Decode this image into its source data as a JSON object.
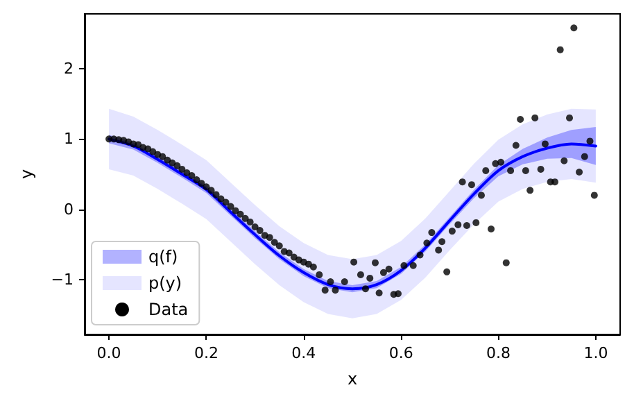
{
  "chart_data": {
    "type": "scatter",
    "xlabel": "x",
    "ylabel": "y",
    "xlim": [
      -0.05,
      1.05
    ],
    "ylim": [
      -1.78,
      2.78
    ],
    "xticks": [
      {
        "value": 0,
        "label": "0.0"
      },
      {
        "value": 0.2,
        "label": "0.2"
      },
      {
        "value": 0.4,
        "label": "0.4"
      },
      {
        "value": 0.6,
        "label": "0.6"
      },
      {
        "value": 0.8,
        "label": "0.8"
      },
      {
        "value": 1,
        "label": "1.0"
      }
    ],
    "yticks": [
      -1,
      0,
      1,
      2
    ],
    "grid": false,
    "legend": "bottom left",
    "series": [
      {
        "name": "q(f)",
        "type": "line",
        "color": "#0000ff",
        "marker": "none",
        "line_style": "solid",
        "x": [
          0,
          0.05,
          0.1,
          0.15,
          0.2,
          0.25,
          0.3,
          0.35,
          0.4,
          0.45,
          0.5,
          0.55,
          0.6,
          0.65,
          0.7,
          0.75,
          0.8,
          0.85,
          0.9,
          0.95,
          1
        ],
        "values": [
          1.0,
          0.9,
          0.71,
          0.5,
          0.28,
          -0.04,
          -0.36,
          -0.66,
          -0.9,
          -1.07,
          -1.13,
          -1.07,
          -0.87,
          -0.55,
          -0.16,
          0.22,
          0.55,
          0.75,
          0.87,
          0.93,
          0.9
        ],
        "lower": [
          0.94,
          0.85,
          0.66,
          0.45,
          0.23,
          -0.09,
          -0.41,
          -0.71,
          -0.95,
          -1.12,
          -1.18,
          -1.12,
          -0.92,
          -0.6,
          -0.21,
          0.16,
          0.47,
          0.64,
          0.72,
          0.73,
          0.63
        ],
        "upper": [
          1.06,
          0.95,
          0.76,
          0.55,
          0.33,
          0.01,
          -0.31,
          -0.61,
          -0.85,
          -1.02,
          -1.08,
          -1.02,
          -0.82,
          -0.5,
          -0.11,
          0.28,
          0.63,
          0.86,
          1.02,
          1.13,
          1.17
        ]
      },
      {
        "name": "p(y)",
        "type": "line",
        "color": "#0000ff",
        "x": [
          0,
          0.05,
          0.1,
          0.15,
          0.2,
          0.25,
          0.3,
          0.35,
          0.4,
          0.45,
          0.5,
          0.55,
          0.6,
          0.65,
          0.7,
          0.75,
          0.8,
          0.85,
          0.9,
          0.95,
          1
        ],
        "values": [
          null,
          null,
          null,
          null,
          null,
          null,
          null,
          null,
          null,
          null,
          null,
          null,
          null,
          null,
          null,
          null,
          null,
          null,
          null,
          null,
          null
        ],
        "lower": [
          0.57,
          0.48,
          0.29,
          0.08,
          -0.14,
          -0.46,
          -0.78,
          -1.08,
          -1.32,
          -1.49,
          -1.55,
          -1.49,
          -1.29,
          -0.97,
          -0.58,
          -0.21,
          0.11,
          0.29,
          0.39,
          0.43,
          0.38
        ],
        "upper": [
          1.43,
          1.32,
          1.13,
          0.92,
          0.7,
          0.38,
          0.06,
          -0.24,
          -0.48,
          -0.65,
          -0.71,
          -0.65,
          -0.45,
          -0.13,
          0.26,
          0.65,
          0.99,
          1.21,
          1.35,
          1.43,
          1.42
        ]
      },
      {
        "name": "Data",
        "color": "#000000",
        "marker": "circle",
        "x": [
          0,
          0.01,
          0.02,
          0.03,
          0.04,
          0.05,
          0.06,
          0.07,
          0.08,
          0.09,
          0.1,
          0.11,
          0.12,
          0.13,
          0.14,
          0.15,
          0.16,
          0.17,
          0.18,
          0.19,
          0.2,
          0.21,
          0.22,
          0.23,
          0.24,
          0.25,
          0.26,
          0.27,
          0.28,
          0.29,
          0.3,
          0.31,
          0.32,
          0.33,
          0.34,
          0.35,
          0.36,
          0.37,
          0.38,
          0.39,
          0.4,
          0.41,
          0.42,
          0.432,
          0.444,
          0.455,
          0.465,
          0.484,
          0.503,
          0.517,
          0.527,
          0.536,
          0.547,
          0.555,
          0.564,
          0.575,
          0.585,
          0.594,
          0.606,
          0.625,
          0.639,
          0.653,
          0.663,
          0.677,
          0.684,
          0.694,
          0.705,
          0.717,
          0.726,
          0.735,
          0.745,
          0.754,
          0.765,
          0.774,
          0.785,
          0.794,
          0.805,
          0.816,
          0.825,
          0.836,
          0.845,
          0.856,
          0.865,
          0.875,
          0.887,
          0.896,
          0.907,
          0.916,
          0.927,
          0.935,
          0.946,
          0.955,
          0.966,
          0.977,
          0.988,
          0.997
        ],
        "values": [
          1.0,
          1.0,
          0.99,
          0.98,
          0.96,
          0.93,
          0.92,
          0.88,
          0.86,
          0.82,
          0.78,
          0.75,
          0.7,
          0.66,
          0.62,
          0.57,
          0.52,
          0.48,
          0.42,
          0.37,
          0.32,
          0.27,
          0.21,
          0.15,
          0.1,
          0.04,
          -0.02,
          -0.07,
          -0.13,
          -0.18,
          -0.25,
          -0.3,
          -0.37,
          -0.4,
          -0.47,
          -0.52,
          -0.6,
          -0.62,
          -0.68,
          -0.72,
          -0.75,
          -0.78,
          -0.82,
          -0.93,
          -1.15,
          -1.03,
          -1.15,
          -1.03,
          -0.75,
          -0.93,
          -1.13,
          -0.98,
          -0.76,
          -1.19,
          -0.9,
          -0.85,
          -1.21,
          -1.2,
          -0.8,
          -0.8,
          -0.65,
          -0.48,
          -0.33,
          -0.58,
          -0.46,
          -0.89,
          -0.31,
          -0.22,
          0.39,
          -0.23,
          0.35,
          -0.19,
          0.2,
          0.55,
          -0.28,
          0.65,
          0.67,
          -0.76,
          0.55,
          0.91,
          1.28,
          0.55,
          0.27,
          1.3,
          0.57,
          0.93,
          0.39,
          0.39,
          2.27,
          0.69,
          1.3,
          2.58,
          0.53,
          0.75,
          0.97,
          0.2
        ]
      }
    ]
  }
}
